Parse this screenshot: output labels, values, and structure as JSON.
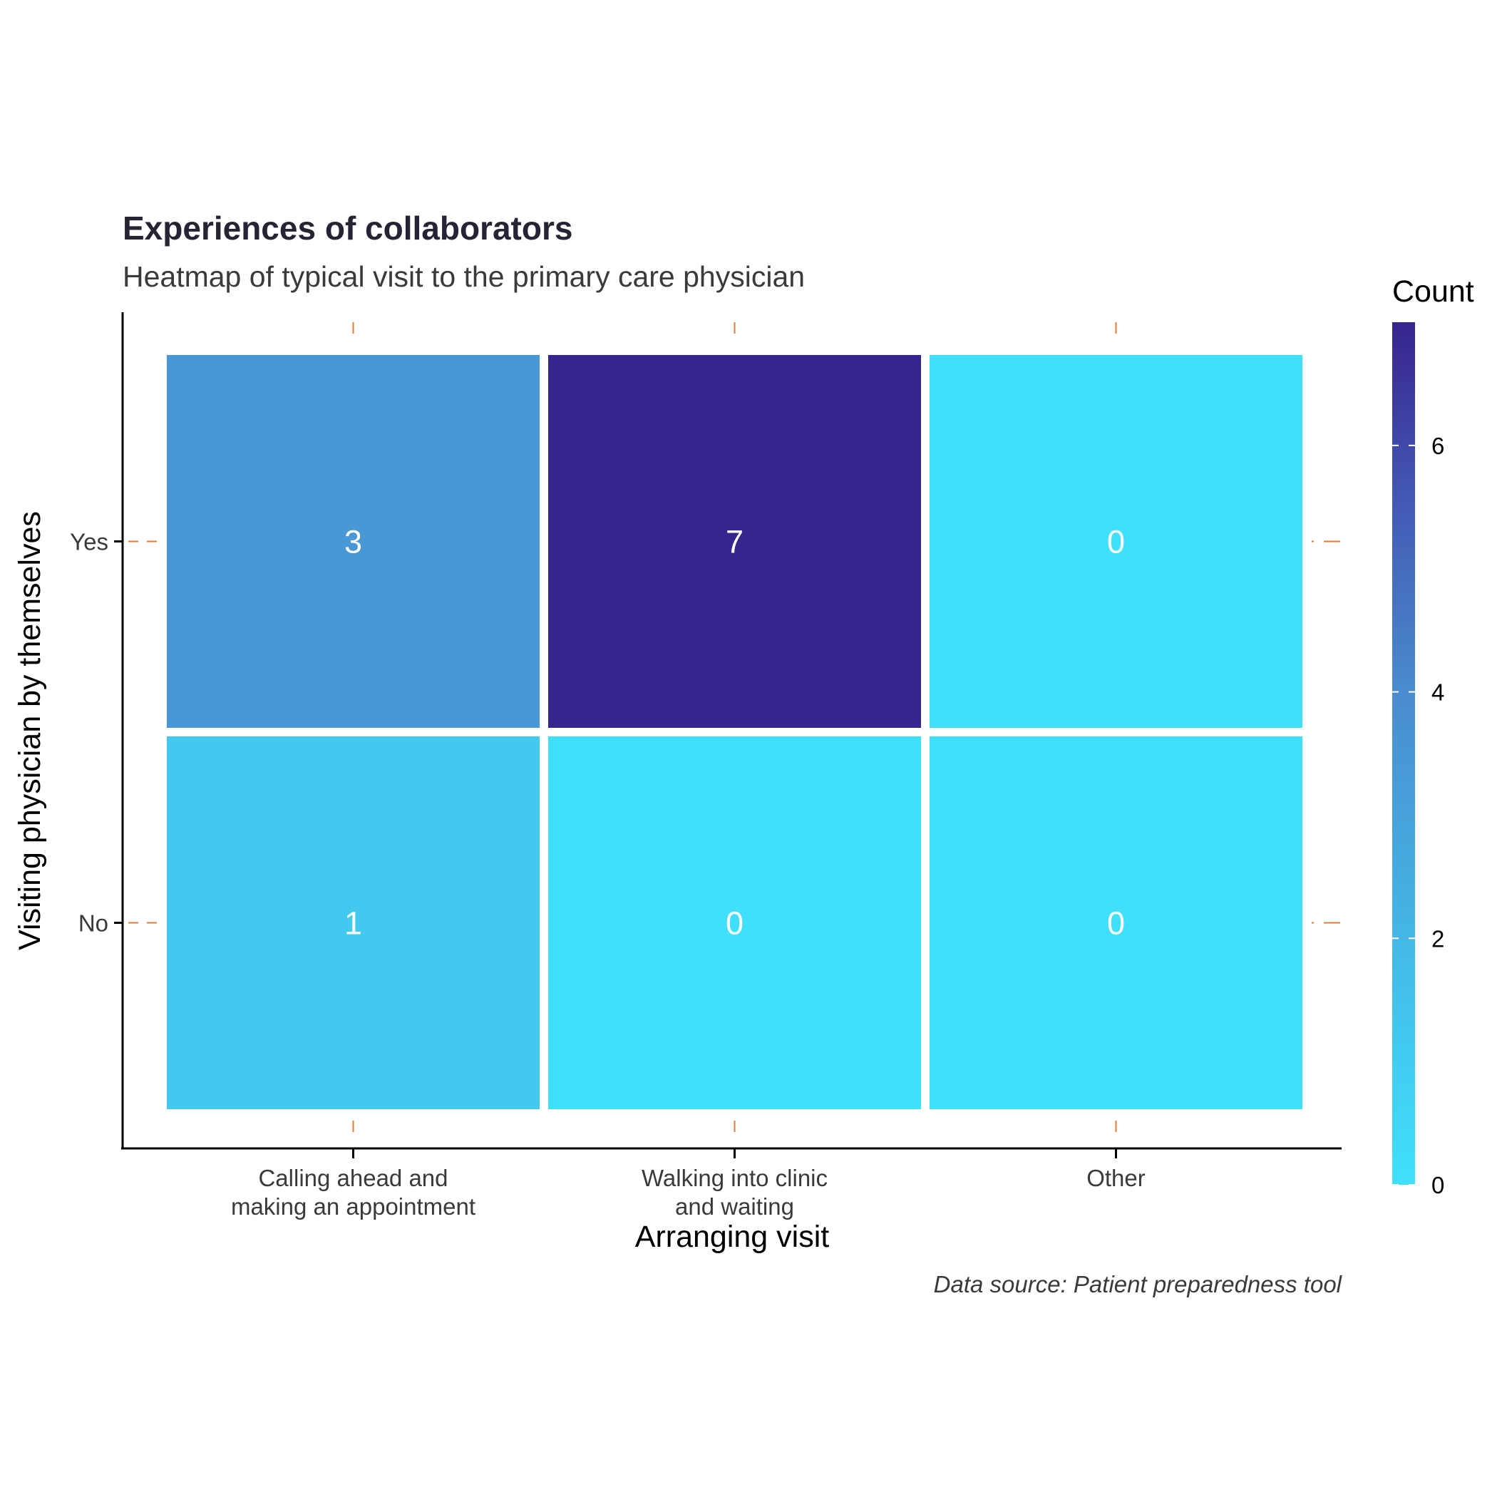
{
  "chart_data": {
    "type": "heatmap",
    "title": "Experiences of collaborators",
    "subtitle": "Heatmap of typical visit to the primary care physician",
    "caption": "Data source: Patient preparedness tool",
    "xlabel": "Arranging visit",
    "ylabel": "Visiting physician by themselves",
    "x_categories": [
      [
        "Calling ahead and",
        "making an appointment"
      ],
      [
        "Walking into clinic",
        "and waiting"
      ],
      [
        "Other"
      ]
    ],
    "y_categories": [
      "Yes",
      "No"
    ],
    "values": [
      [
        3,
        7,
        0
      ],
      [
        1,
        0,
        0
      ]
    ],
    "legend": {
      "title": "Count",
      "placement": "right",
      "ticks": [
        "0",
        "2",
        "4",
        "6"
      ],
      "range": [
        0,
        7
      ]
    },
    "color_scale": {
      "low": "#40e0fc",
      "mid": "#4a8ccf",
      "high": "#37248f"
    },
    "grid": false
  }
}
